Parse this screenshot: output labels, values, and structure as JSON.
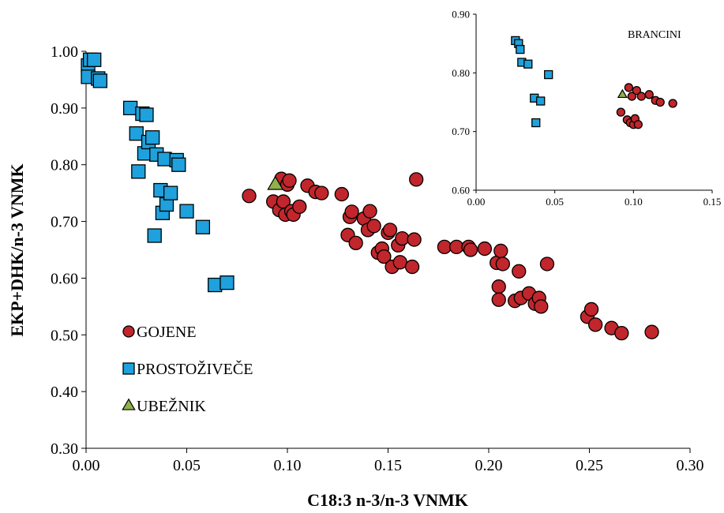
{
  "chart_data": [
    {
      "type": "scatter",
      "xlabel": "C18:3 n-3/n-3 VNMK",
      "ylabel": "EKP+DHK/n-3 VNMK",
      "xlim": [
        0,
        0.3
      ],
      "ylim": [
        0.3,
        1.0
      ],
      "xticks": [
        "0.00",
        "0.05",
        "0.10",
        "0.15",
        "0.20",
        "0.25",
        "0.30"
      ],
      "yticks": [
        "0.30",
        "0.40",
        "0.50",
        "0.60",
        "0.70",
        "0.80",
        "0.90",
        "1.00"
      ],
      "grid": false,
      "legend": "lower-left",
      "series": [
        {
          "name": "GOJENE",
          "marker": "circle",
          "color": "#c0262b",
          "points": [
            [
              0.081,
              0.745
            ],
            [
              0.093,
              0.735
            ],
            [
              0.096,
              0.72
            ],
            [
              0.097,
              0.775
            ],
            [
              0.098,
              0.735
            ],
            [
              0.099,
              0.712
            ],
            [
              0.1,
              0.765
            ],
            [
              0.101,
              0.772
            ],
            [
              0.102,
              0.718
            ],
            [
              0.103,
              0.712
            ],
            [
              0.106,
              0.726
            ],
            [
              0.11,
              0.763
            ],
            [
              0.114,
              0.752
            ],
            [
              0.117,
              0.75
            ],
            [
              0.127,
              0.748
            ],
            [
              0.13,
              0.676
            ],
            [
              0.131,
              0.708
            ],
            [
              0.132,
              0.717
            ],
            [
              0.134,
              0.662
            ],
            [
              0.138,
              0.705
            ],
            [
              0.14,
              0.685
            ],
            [
              0.141,
              0.718
            ],
            [
              0.143,
              0.692
            ],
            [
              0.145,
              0.645
            ],
            [
              0.147,
              0.652
            ],
            [
              0.148,
              0.638
            ],
            [
              0.15,
              0.68
            ],
            [
              0.151,
              0.685
            ],
            [
              0.152,
              0.62
            ],
            [
              0.155,
              0.658
            ],
            [
              0.156,
              0.628
            ],
            [
              0.157,
              0.67
            ],
            [
              0.162,
              0.62
            ],
            [
              0.163,
              0.668
            ],
            [
              0.164,
              0.774
            ],
            [
              0.178,
              0.655
            ],
            [
              0.184,
              0.655
            ],
            [
              0.19,
              0.655
            ],
            [
              0.191,
              0.65
            ],
            [
              0.198,
              0.652
            ],
            [
              0.204,
              0.627
            ],
            [
              0.205,
              0.585
            ],
            [
              0.205,
              0.562
            ],
            [
              0.206,
              0.648
            ],
            [
              0.207,
              0.625
            ],
            [
              0.213,
              0.56
            ],
            [
              0.215,
              0.612
            ],
            [
              0.216,
              0.565
            ],
            [
              0.22,
              0.573
            ],
            [
              0.223,
              0.555
            ],
            [
              0.225,
              0.565
            ],
            [
              0.226,
              0.55
            ],
            [
              0.229,
              0.625
            ],
            [
              0.249,
              0.532
            ],
            [
              0.251,
              0.545
            ],
            [
              0.253,
              0.518
            ],
            [
              0.261,
              0.512
            ],
            [
              0.266,
              0.503
            ],
            [
              0.281,
              0.505
            ]
          ]
        },
        {
          "name": "PROSTOŽIVEČE",
          "marker": "square",
          "color": "#1ea1dc",
          "points": [
            [
              0.001,
              0.975
            ],
            [
              0.001,
              0.955
            ],
            [
              0.002,
              0.985
            ],
            [
              0.004,
              0.985
            ],
            [
              0.006,
              0.952
            ],
            [
              0.007,
              0.948
            ],
            [
              0.022,
              0.9
            ],
            [
              0.025,
              0.855
            ],
            [
              0.026,
              0.788
            ],
            [
              0.028,
              0.89
            ],
            [
              0.029,
              0.82
            ],
            [
              0.03,
              0.888
            ],
            [
              0.031,
              0.84
            ],
            [
              0.033,
              0.848
            ],
            [
              0.034,
              0.675
            ],
            [
              0.035,
              0.818
            ],
            [
              0.037,
              0.755
            ],
            [
              0.038,
              0.715
            ],
            [
              0.039,
              0.81
            ],
            [
              0.04,
              0.73
            ],
            [
              0.042,
              0.75
            ],
            [
              0.045,
              0.808
            ],
            [
              0.046,
              0.8
            ],
            [
              0.05,
              0.718
            ],
            [
              0.058,
              0.69
            ],
            [
              0.064,
              0.588
            ],
            [
              0.07,
              0.592
            ]
          ]
        },
        {
          "name": "UBEŽNIK",
          "marker": "triangle",
          "color": "#8fb04a",
          "points": [
            [
              0.094,
              0.765
            ]
          ]
        }
      ]
    },
    {
      "type": "scatter",
      "title": "BRANCINI",
      "xlim": [
        0,
        0.15
      ],
      "ylim": [
        0.6,
        0.9
      ],
      "xticks": [
        "0.00",
        "0.05",
        "0.10",
        "0.15"
      ],
      "yticks": [
        "0.60",
        "0.70",
        "0.80",
        "0.90"
      ],
      "grid": false,
      "series": [
        {
          "marker": "circle",
          "color": "#c0262b",
          "points": [
            [
              0.092,
              0.733
            ],
            [
              0.096,
              0.72
            ],
            [
              0.097,
              0.775
            ],
            [
              0.098,
              0.715
            ],
            [
              0.099,
              0.76
            ],
            [
              0.1,
              0.712
            ],
            [
              0.101,
              0.722
            ],
            [
              0.102,
              0.77
            ],
            [
              0.103,
              0.712
            ],
            [
              0.105,
              0.76
            ],
            [
              0.11,
              0.763
            ],
            [
              0.114,
              0.753
            ],
            [
              0.117,
              0.75
            ],
            [
              0.125,
              0.748
            ]
          ]
        },
        {
          "marker": "square",
          "color": "#1ea1dc",
          "points": [
            [
              0.025,
              0.855
            ],
            [
              0.027,
              0.85
            ],
            [
              0.028,
              0.84
            ],
            [
              0.029,
              0.818
            ],
            [
              0.033,
              0.815
            ],
            [
              0.037,
              0.757
            ],
            [
              0.038,
              0.715
            ],
            [
              0.041,
              0.752
            ],
            [
              0.046,
              0.797
            ]
          ]
        },
        {
          "marker": "triangle",
          "color": "#8fb04a",
          "points": [
            [
              0.093,
              0.763
            ]
          ]
        }
      ]
    }
  ]
}
